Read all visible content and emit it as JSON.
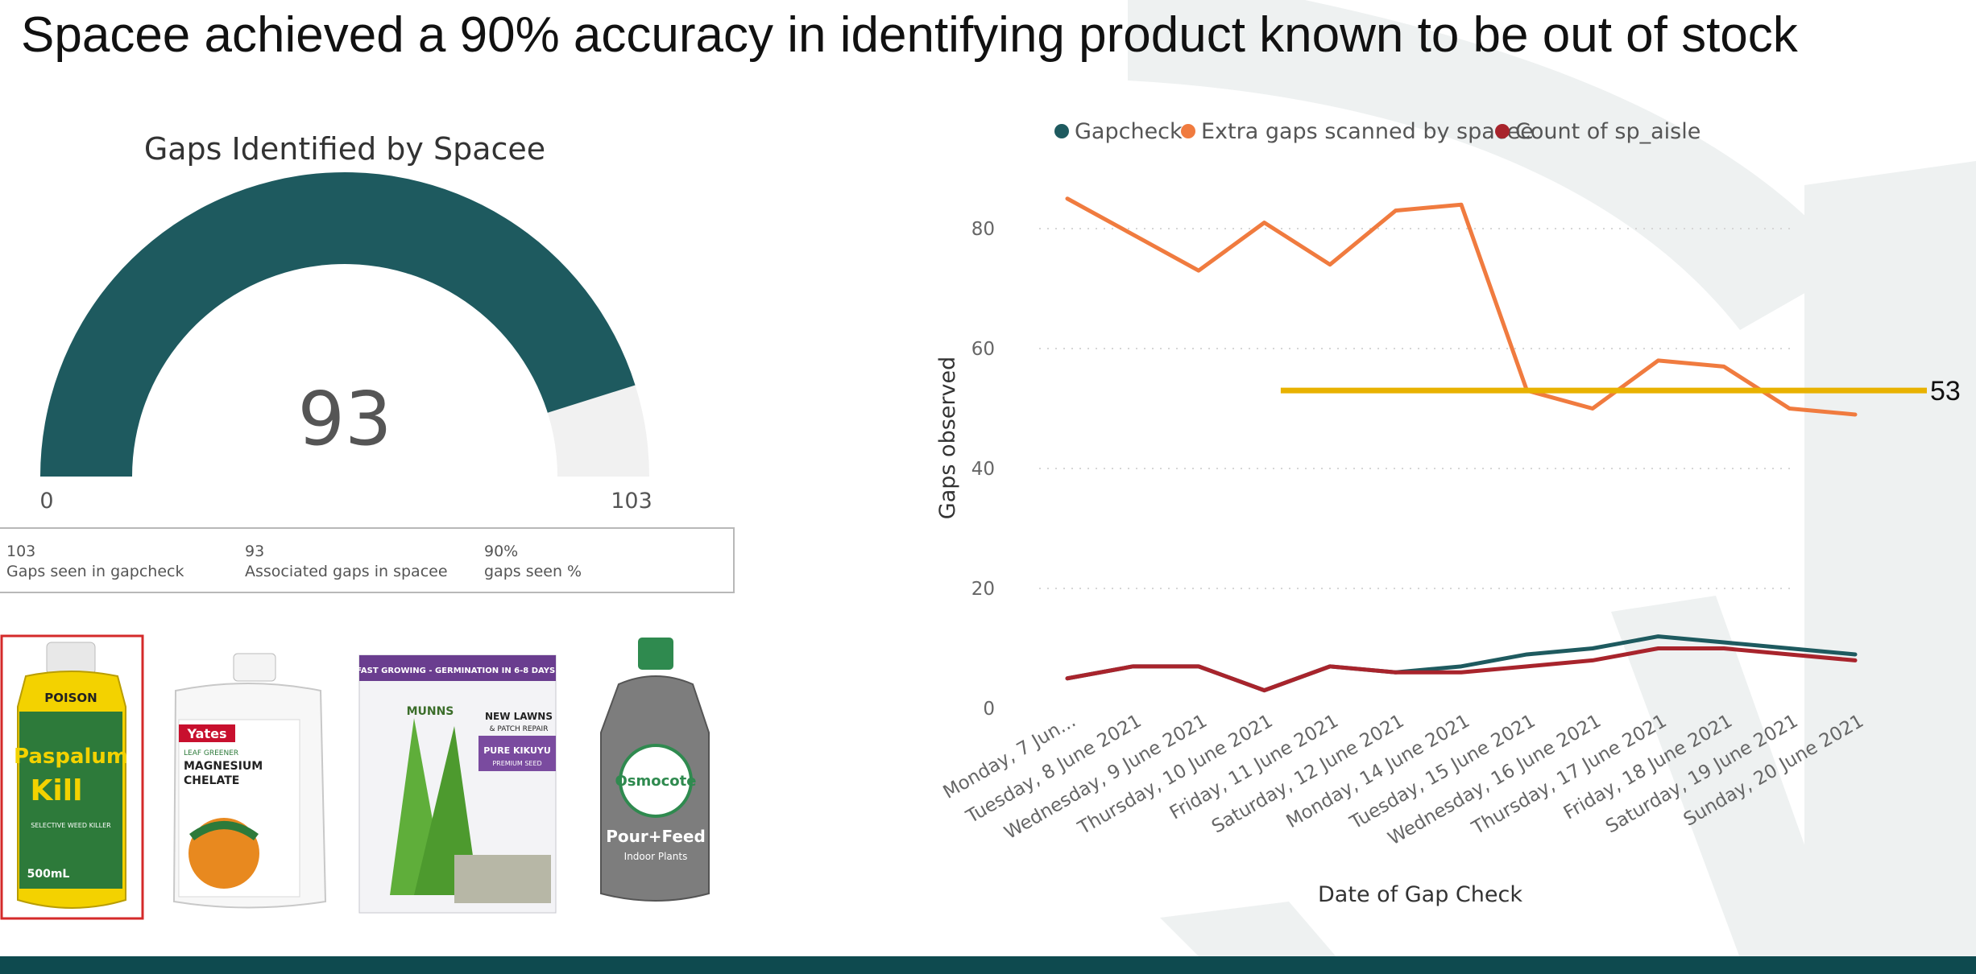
{
  "slide": {
    "title": "Spacee achieved a 90% accuracy in identifying product known to be out of stock"
  },
  "colors": {
    "gapcheck": "#1e5a5f",
    "extra_gaps": "#f07b3f",
    "count_sp_aisle": "#a8242c",
    "reference": "#e8b200",
    "gauge_fill": "#1e5a5f",
    "gauge_track": "#f1f1f1",
    "footer": "#0e4a4f"
  },
  "gauge": {
    "title": "Gaps Identified by Spacee",
    "value": 93,
    "min": 0,
    "max": 103,
    "value_label": "93",
    "min_label": "0",
    "max_label": "103"
  },
  "kpis": [
    {
      "value": "103",
      "label": "Gaps seen in gapcheck"
    },
    {
      "value": "93",
      "label": "Associated gaps in spacee"
    },
    {
      "value": "90%",
      "label": "gaps seen %"
    }
  ],
  "products": [
    {
      "name": "Paspalum Kill",
      "brand": "POISON",
      "text1": "Paspalum",
      "text2": "Kill",
      "text3": "SELECTIVE WEED KILLER",
      "size": "500mL",
      "highlighted": true
    },
    {
      "name": "Yates Magnesium Chelate",
      "brand": "Yates",
      "text1": "LEAF GREENER",
      "text2": "MAGNESIUM",
      "text3": "CHELATE"
    },
    {
      "name": "Munns Pure Kikuyu",
      "text1": "FAST GROWING - GERMINATION IN 6-8 DAYS!",
      "text2": "MUNNS",
      "text3": "NEW LAWNS",
      "text4": "& PATCH REPAIR",
      "text5": "PURE KIKUYU",
      "text6": "PREMIUM SEED"
    },
    {
      "name": "Osmocote Pour+Feed",
      "brand": "Osmocote",
      "text1": "Pour+Feed",
      "text2": "Indoor Plants"
    }
  ],
  "chart_data": {
    "type": "line",
    "title": "",
    "xlabel": "Date of Gap Check",
    "ylabel": "Gaps observed",
    "ylim": [
      0,
      86
    ],
    "yticks": [
      0,
      20,
      40,
      60,
      80
    ],
    "grid": true,
    "legend_position": "top",
    "categories": [
      "Monday, 7 Jun...",
      "Tuesday, 8 June 2021",
      "Wednesday, 9 June 2021",
      "Thursday, 10 June 2021",
      "Friday, 11 June 2021",
      "Saturday, 12 June 2021",
      "Monday, 14 June 2021",
      "Tuesday, 15 June 2021",
      "Wednesday, 16 June 2021",
      "Thursday, 17 June 2021",
      "Friday, 18 June 2021",
      "Saturday, 19 June 2021",
      "Sunday, 20 June 2021"
    ],
    "series": [
      {
        "name": "Gapcheck",
        "color": "#1e5a5f",
        "values": [
          5,
          7,
          7,
          3,
          7,
          6,
          7,
          9,
          10,
          12,
          11,
          10,
          9
        ]
      },
      {
        "name": "Extra gaps scanned by spacee",
        "color": "#f07b3f",
        "values": [
          85,
          79,
          73,
          81,
          74,
          83,
          84,
          53,
          50,
          58,
          57,
          50,
          49
        ]
      },
      {
        "name": "Count of sp_aisle",
        "color": "#a8242c",
        "values": [
          5,
          7,
          7,
          3,
          7,
          6,
          6,
          7,
          8,
          10,
          10,
          9,
          8
        ]
      }
    ],
    "reference_line": {
      "value": 53,
      "label": "53",
      "color": "#e8b200",
      "start_index": 3.25
    }
  }
}
